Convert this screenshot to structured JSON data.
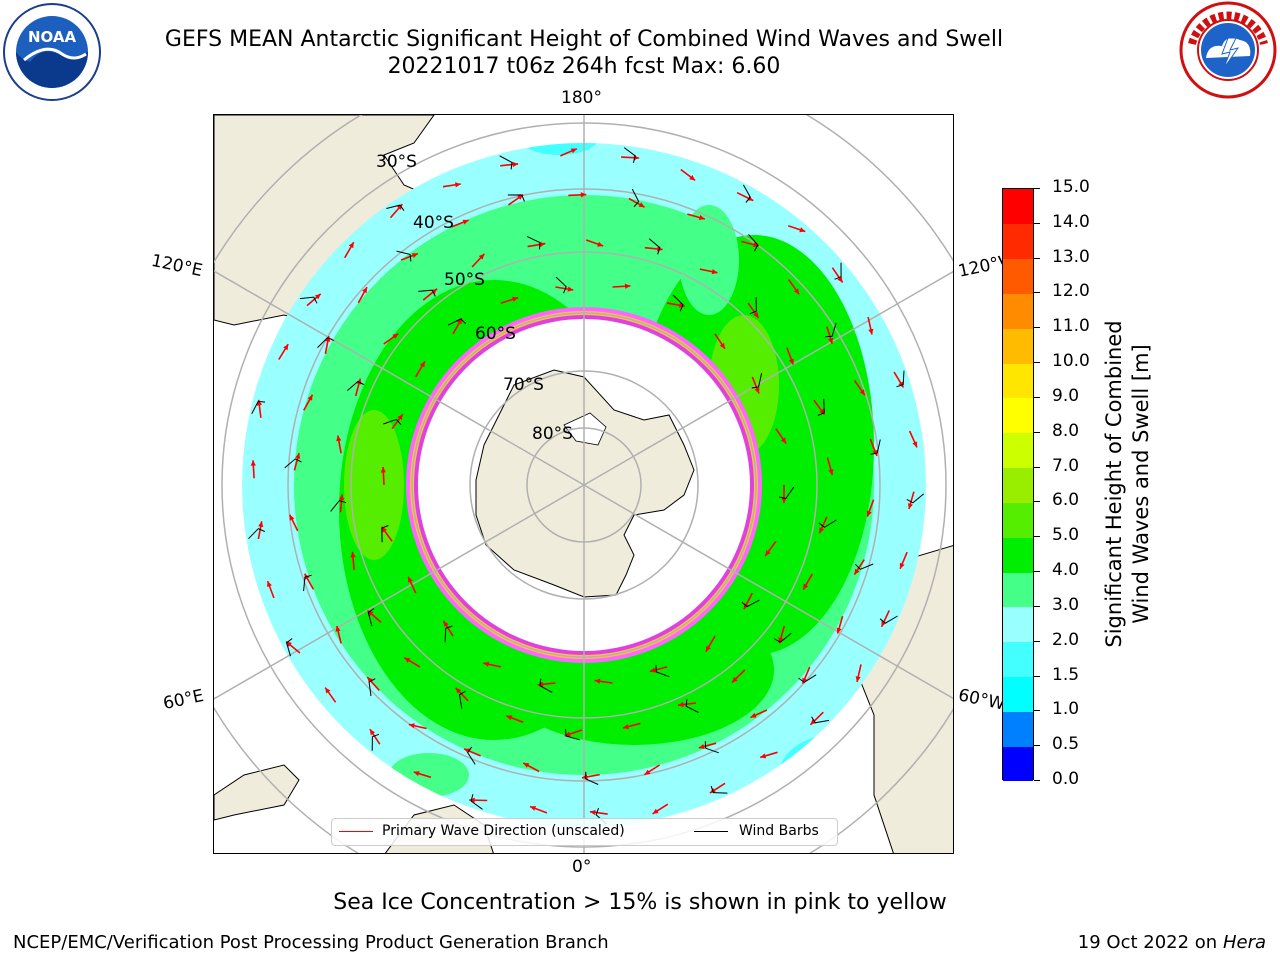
{
  "title": {
    "line1": "GEFS MEAN Antarctic Significant Height of Combined Wind Waves and Swell",
    "line2": "20221017 t06z 264h fcst   Max: 6.60"
  },
  "logos": {
    "left": {
      "icon": "noaa-logo",
      "text": "NOAA"
    },
    "right": {
      "icon": "nws-logo",
      "text": "NATIONAL WEATHER SERVICE"
    }
  },
  "map": {
    "projection": "south-polar-stereographic",
    "longitude_labels": {
      "top": "180°",
      "upper_left": "120°E",
      "upper_right": "120°W",
      "lower_left": "60°E",
      "lower_right": "60°W",
      "bottom": "0°"
    },
    "latitude_labels": [
      "30°S",
      "40°S",
      "50°S",
      "60°S",
      "70°S",
      "80°S"
    ],
    "colors": {
      "land": "#efecdc",
      "ice_free_ocean": "#ffffff",
      "sea_ice_pink": "#ff66ff",
      "sea_ice_magenta": "#e040e0",
      "sea_ice_yellow": "#ffc040",
      "gridline": "#b0b0b0",
      "wave_arrow": "#ff0000",
      "wind_barb": "#000000"
    }
  },
  "legend": {
    "primary_wave": "Primary Wave Direction (unscaled)",
    "wind_barbs": "Wind Barbs"
  },
  "colorbar": {
    "label_line1": "Significant Height of Combined",
    "label_line2": "Wind Waves and Swell [m]",
    "ticks": [
      "0.0",
      "0.5",
      "1.0",
      "1.5",
      "2.0",
      "3.0",
      "4.0",
      "5.0",
      "6.0",
      "7.0",
      "8.0",
      "9.0",
      "10.0",
      "11.0",
      "12.0",
      "13.0",
      "14.0",
      "15.0"
    ],
    "colors": [
      "#0000ff",
      "#0080ff",
      "#00ffff",
      "#44ffff",
      "#99ffff",
      "#44ff88",
      "#00ee00",
      "#55ee00",
      "#99ee00",
      "#ccff00",
      "#ffff00",
      "#ffe600",
      "#ffbb00",
      "#ff8c00",
      "#ff5a00",
      "#ff2a00",
      "#ff0000"
    ]
  },
  "subtitle": "Sea Ice Concentration > 15% is shown in pink to yellow",
  "footer": {
    "left": "NCEP/EMC/Verification Post Processing Product Generation Branch",
    "right_date": "19 Oct 2022 on ",
    "right_host": "Hera"
  }
}
